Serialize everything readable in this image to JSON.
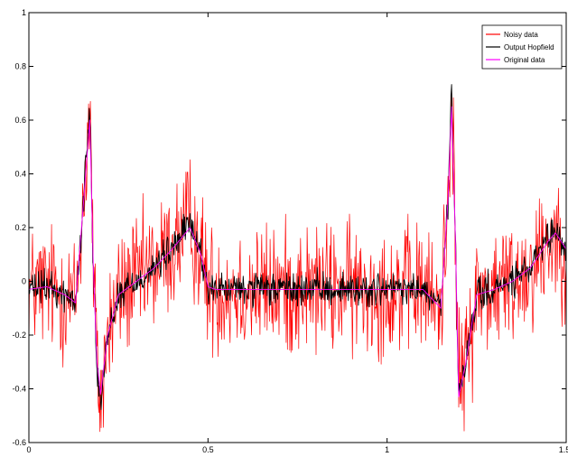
{
  "chart_data": {
    "type": "line",
    "title": "",
    "xlabel": "",
    "ylabel": "",
    "xlim": [
      0,
      1.5
    ],
    "ylim": [
      -0.6,
      1
    ],
    "xticks": [
      0,
      0.5,
      1,
      1.5
    ],
    "xtick_labels": [
      "0",
      "0.5",
      "1",
      "1.5"
    ],
    "yticks": [
      -0.6,
      -0.4,
      -0.2,
      0,
      0.2,
      0.4,
      0.6,
      0.8,
      1
    ],
    "ytick_labels": [
      "-0.6",
      "-0.4",
      "-0.2",
      "0",
      "0.2",
      "0.4",
      "0.6",
      "0.8",
      "1"
    ],
    "grid": false,
    "legend_position": "top-right",
    "series": [
      {
        "name": "Noisy data",
        "color": "#ff0000",
        "noise_amplitude": 0.12,
        "x": [
          0,
          0.05,
          0.1,
          0.13,
          0.15,
          0.17,
          0.18,
          0.19,
          0.2,
          0.22,
          0.25,
          0.3,
          0.35,
          0.4,
          0.45,
          0.48,
          0.5,
          0.52,
          0.6,
          0.8,
          1.0,
          1.1,
          1.15,
          1.17,
          1.18,
          1.19,
          1.2,
          1.22,
          1.25,
          1.3,
          1.35,
          1.4,
          1.45,
          1.47,
          1.5
        ],
        "y": [
          -0.03,
          -0.02,
          -0.05,
          -0.08,
          0.25,
          0.65,
          0.05,
          -0.3,
          -0.45,
          -0.2,
          -0.05,
          0.0,
          0.05,
          0.12,
          0.22,
          0.1,
          -0.02,
          -0.03,
          -0.03,
          -0.03,
          -0.03,
          -0.03,
          -0.1,
          0.3,
          0.75,
          0.2,
          -0.4,
          -0.3,
          -0.05,
          -0.03,
          0.0,
          0.05,
          0.15,
          0.18,
          0.12
        ]
      },
      {
        "name": "Output Hopfield",
        "color": "#000000",
        "noise_amplitude": 0.03,
        "x": [
          0,
          0.05,
          0.1,
          0.13,
          0.15,
          0.17,
          0.18,
          0.19,
          0.2,
          0.22,
          0.25,
          0.3,
          0.35,
          0.4,
          0.45,
          0.48,
          0.5,
          0.52,
          0.6,
          0.8,
          1.0,
          1.1,
          1.15,
          1.17,
          1.18,
          1.19,
          1.2,
          1.22,
          1.25,
          1.3,
          1.35,
          1.4,
          1.45,
          1.47,
          1.5
        ],
        "y": [
          -0.03,
          -0.02,
          -0.05,
          -0.08,
          0.25,
          0.65,
          0.05,
          -0.3,
          -0.45,
          -0.2,
          -0.05,
          0.0,
          0.05,
          0.12,
          0.22,
          0.1,
          -0.02,
          -0.03,
          -0.03,
          -0.03,
          -0.03,
          -0.03,
          -0.1,
          0.3,
          0.7,
          0.2,
          -0.45,
          -0.3,
          -0.05,
          -0.03,
          0.0,
          0.05,
          0.15,
          0.18,
          0.12
        ]
      },
      {
        "name": "Original data",
        "color": "#ff00ff",
        "noise_amplitude": 0.0,
        "x": [
          0,
          0.05,
          0.1,
          0.13,
          0.15,
          0.17,
          0.18,
          0.19,
          0.2,
          0.22,
          0.25,
          0.3,
          0.35,
          0.4,
          0.45,
          0.48,
          0.5,
          0.52,
          0.6,
          0.8,
          1.0,
          1.1,
          1.15,
          1.17,
          1.18,
          1.19,
          1.2,
          1.22,
          1.25,
          1.3,
          1.35,
          1.4,
          1.45,
          1.47,
          1.5
        ],
        "y": [
          -0.03,
          -0.02,
          -0.05,
          -0.08,
          0.25,
          0.6,
          0.05,
          -0.3,
          -0.42,
          -0.2,
          -0.05,
          0.0,
          0.05,
          0.12,
          0.2,
          0.1,
          -0.02,
          -0.03,
          -0.03,
          -0.03,
          -0.03,
          -0.03,
          -0.1,
          0.3,
          0.65,
          0.2,
          -0.43,
          -0.3,
          -0.05,
          -0.03,
          0.0,
          0.05,
          0.15,
          0.18,
          0.12
        ]
      }
    ]
  }
}
